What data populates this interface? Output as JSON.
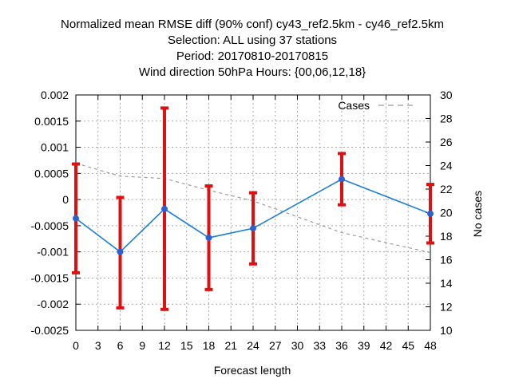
{
  "title_lines": [
    "Normalized mean RMSE diff (90% conf) cy43_ref2.5km - cy46_ref2.5km",
    "Selection: ALL using    37 stations",
    "Period: 20170810-20170815",
    "Wind direction 50hPa   Hours: {00,06,12,18}"
  ],
  "colors": {
    "diff_line": "#1a7fd8",
    "diff_marker": "#2f5fd0",
    "error_bar": "#e01010",
    "cases_line": "#9a9a9a",
    "grid": "#a8a8a8"
  },
  "chart_data": {
    "type": "line",
    "xlabel": "Forecast length",
    "ylabel": "",
    "y2label": "No cases",
    "xlim": [
      0,
      48
    ],
    "ylim": [
      -0.0025,
      0.002
    ],
    "y2lim": [
      10,
      30
    ],
    "x_ticks": [
      "0",
      "3",
      "6",
      "9",
      "12",
      "15",
      "18",
      "21",
      "24",
      "27",
      "30",
      "33",
      "36",
      "39",
      "42",
      "45",
      "48"
    ],
    "y_ticks": [
      "0.002",
      "0.0015",
      "0.001",
      "0.0005",
      "0",
      "-0.0005",
      "-0.001",
      "-0.0015",
      "-0.002",
      "-0.0025"
    ],
    "y2_ticks": [
      "30",
      "28",
      "26",
      "24",
      "22",
      "20",
      "18",
      "16",
      "14",
      "12",
      "10"
    ],
    "grid": true,
    "legend": {
      "position": "top-right",
      "entries": [
        "Cases"
      ]
    },
    "series": [
      {
        "name": "",
        "axis": "left",
        "x": [
          0,
          6,
          12,
          18,
          24,
          36,
          48
        ],
        "values": [
          -0.00036,
          -0.001,
          -0.00018,
          -0.00073,
          -0.00055,
          0.00039,
          -0.00027
        ],
        "ci_low": [
          -0.0014,
          -0.00207,
          -0.0021,
          -0.00172,
          -0.00123,
          -0.0001,
          -0.00083
        ],
        "ci_high": [
          0.00068,
          4e-05,
          0.00175,
          0.00026,
          0.00013,
          0.00088,
          0.00029
        ]
      },
      {
        "name": "Cases",
        "axis": "right",
        "x": [
          0,
          6,
          12,
          18,
          24,
          36,
          48
        ],
        "values": [
          24.2,
          23.1,
          22.9,
          21.9,
          21.0,
          18.3,
          16.6
        ]
      }
    ]
  }
}
